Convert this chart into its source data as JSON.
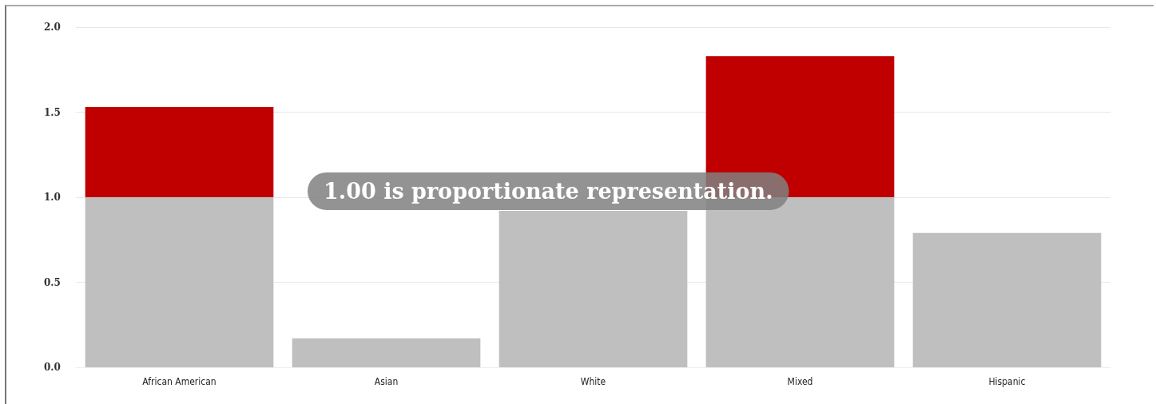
{
  "chart_data": {
    "type": "bar",
    "stacked": true,
    "categories": [
      "African American",
      "Asian",
      "White",
      "Mixed",
      "Hispanic"
    ],
    "series": [
      {
        "color": "#bfbfbf",
        "values": [
          1.0,
          0.17,
          0.92,
          1.0,
          0.79
        ]
      },
      {
        "color": "#c00000",
        "values": [
          0.53,
          null,
          null,
          0.83,
          null
        ]
      }
    ],
    "ylim": [
      0,
      2
    ],
    "yticks": [
      {
        "value": 0,
        "label": "0.0"
      },
      0.5,
      {
        "value": 1,
        "label": "1.0"
      },
      1.5,
      {
        "value": 2,
        "label": "2.0"
      }
    ],
    "grid": "y",
    "annotations": [
      "1.00 is proportionate representation."
    ]
  }
}
